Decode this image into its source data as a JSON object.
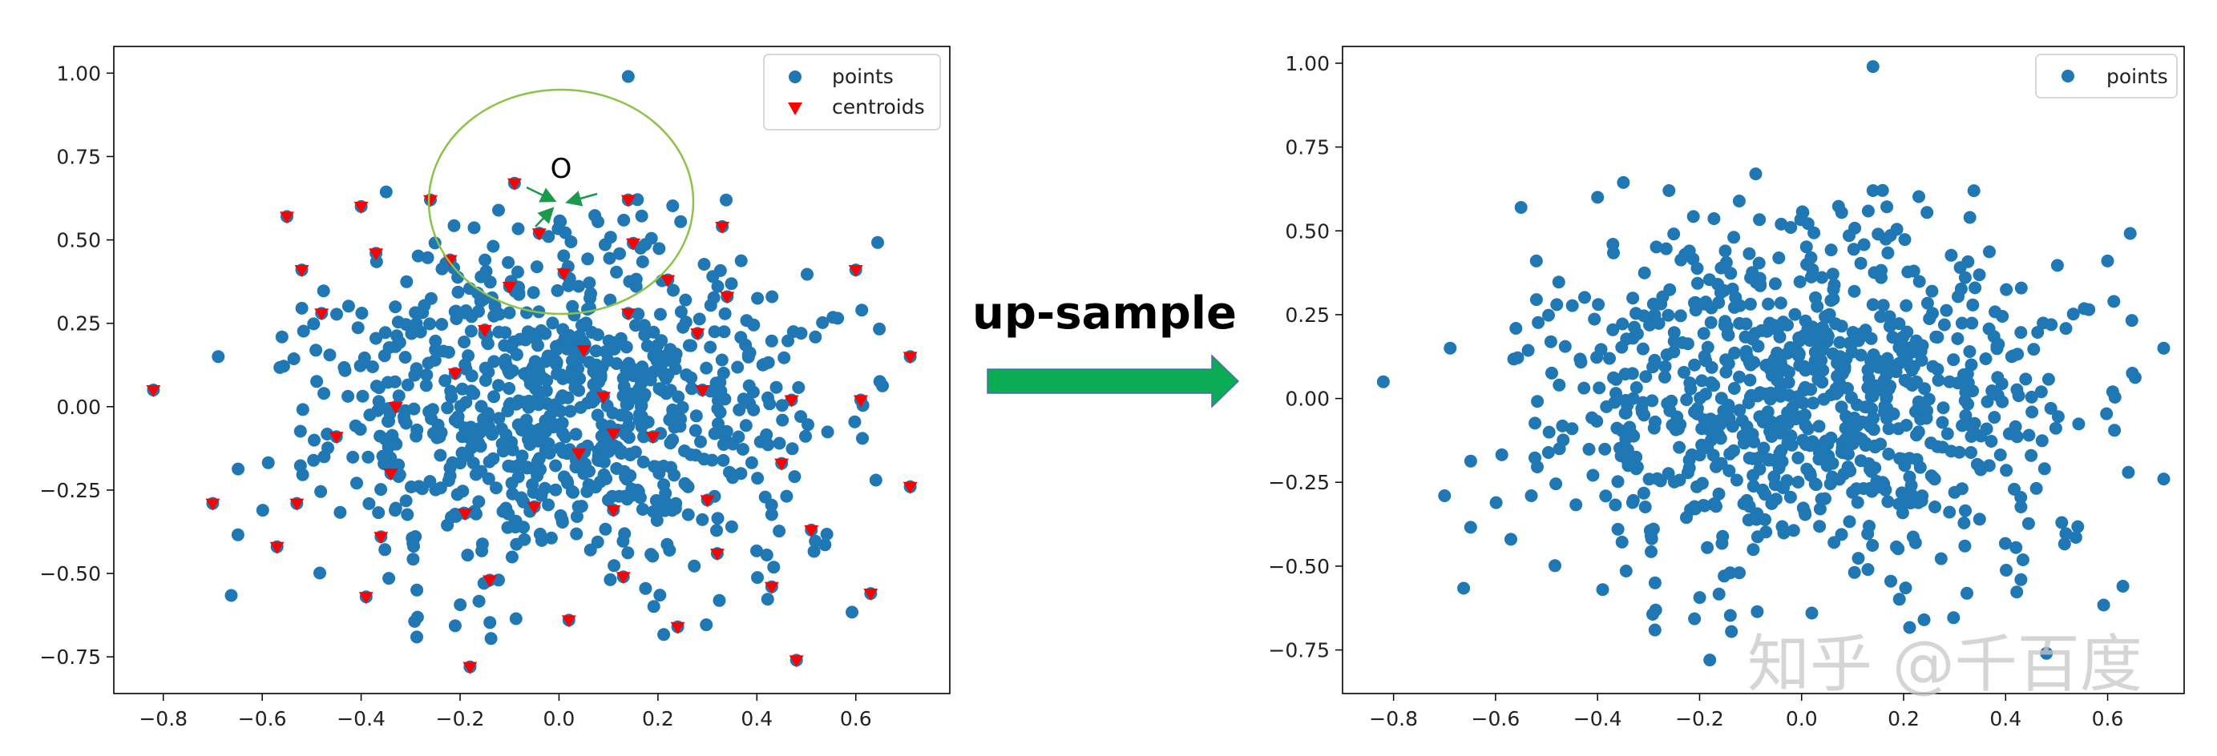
{
  "annotation": {
    "arrow_label": "up-sample",
    "center_label": "O",
    "circle_color": "#8bc34a",
    "small_arrow_color": "#1a9a4a",
    "big_arrow_color": "#0aac55"
  },
  "watermark": "知乎 @千百度",
  "chart_data": [
    {
      "type": "scatter",
      "title": "",
      "xlabel": "",
      "ylabel": "",
      "xlim": [
        -0.9,
        0.79
      ],
      "ylim": [
        -0.86,
        1.08
      ],
      "xticks": [
        "−0.8",
        "−0.6",
        "−0.4",
        "−0.2",
        "0.0",
        "0.2",
        "0.4",
        "0.6"
      ],
      "yticks": [
        "−0.75",
        "−0.50",
        "−0.25",
        "0.00",
        "0.25",
        "0.50",
        "0.75",
        "1.00"
      ],
      "grid": false,
      "legend_position": "top-right",
      "series": [
        {
          "name": "points",
          "color": "#1f77b4",
          "marker": "circle",
          "n_points": 900,
          "distribution": "dense cloud centred near (0, 0), radius about 0.6"
        },
        {
          "name": "centroids",
          "color": "#ff0000",
          "marker": "triangle-down",
          "x": [
            -0.82,
            -0.7,
            -0.57,
            -0.55,
            -0.53,
            -0.52,
            -0.48,
            -0.45,
            -0.4,
            -0.39,
            -0.37,
            -0.36,
            -0.34,
            -0.33,
            -0.26,
            -0.22,
            -0.21,
            -0.19,
            -0.18,
            -0.15,
            -0.14,
            -0.1,
            -0.09,
            -0.05,
            -0.04,
            0.01,
            0.02,
            0.04,
            0.05,
            0.09,
            0.11,
            0.13,
            0.14,
            0.15,
            0.19,
            0.22,
            0.24,
            0.28,
            0.29,
            0.3,
            0.32,
            0.33,
            0.34,
            0.43,
            0.45,
            0.47,
            0.48,
            0.51,
            0.6,
            0.61,
            0.63,
            0.71,
            0.71,
            0.11,
            0.14
          ],
          "y": [
            0.05,
            -0.29,
            -0.42,
            0.57,
            -0.29,
            0.41,
            0.28,
            -0.09,
            0.6,
            -0.57,
            0.46,
            -0.39,
            -0.2,
            0.0,
            0.62,
            0.44,
            0.1,
            -0.32,
            -0.78,
            0.23,
            -0.52,
            0.36,
            0.67,
            -0.3,
            0.52,
            0.4,
            -0.64,
            -0.14,
            0.17,
            0.03,
            -0.31,
            -0.51,
            0.28,
            0.49,
            -0.09,
            0.38,
            -0.66,
            0.22,
            0.05,
            -0.28,
            -0.44,
            0.54,
            0.33,
            -0.54,
            -0.17,
            0.02,
            -0.76,
            -0.37,
            0.41,
            0.02,
            -0.56,
            -0.24,
            0.15,
            -0.08,
            0.62
          ]
        }
      ]
    },
    {
      "type": "scatter",
      "title": "",
      "xlabel": "",
      "ylabel": "",
      "xlim": [
        -0.9,
        0.75
      ],
      "ylim": [
        -0.88,
        1.05
      ],
      "xticks": [
        "−0.8",
        "−0.6",
        "−0.4",
        "−0.2",
        "0.0",
        "0.2",
        "0.4",
        "0.6"
      ],
      "yticks": [
        "−0.75",
        "−0.50",
        "−0.25",
        "0.00",
        "0.25",
        "0.50",
        "0.75",
        "1.00"
      ],
      "grid": false,
      "legend_position": "top-right",
      "series": [
        {
          "name": "points",
          "color": "#1f77b4",
          "marker": "circle",
          "n_points": 900,
          "distribution": "dense cloud centred near (0, 0), radius about 0.6"
        }
      ]
    }
  ]
}
